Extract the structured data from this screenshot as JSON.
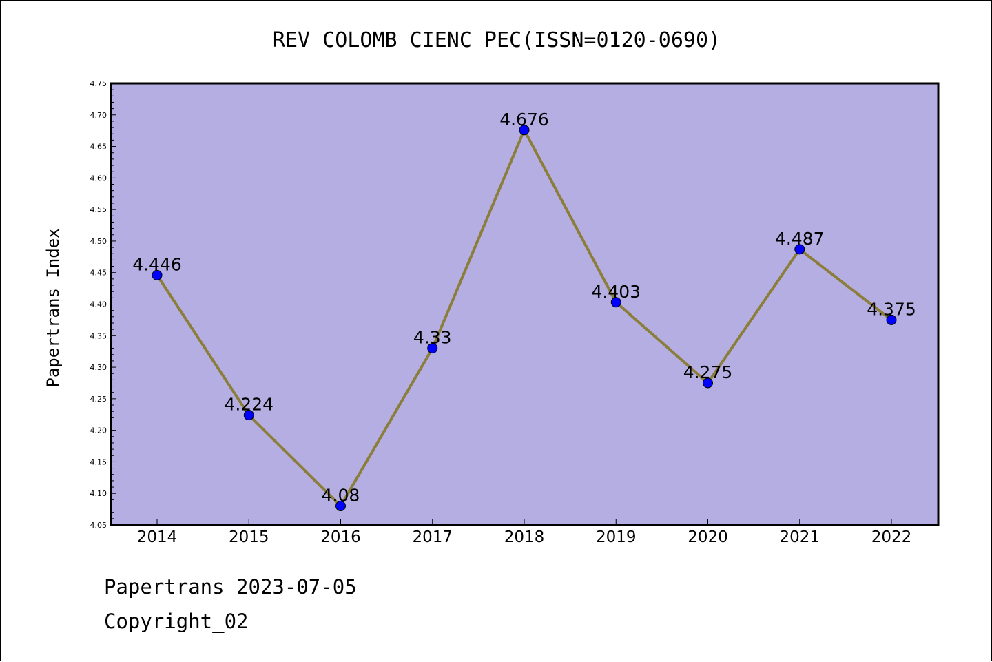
{
  "chart_data": {
    "type": "line",
    "title": "REV COLOMB CIENC PEC(ISSN=0120-0690)",
    "ylabel": "Papertrans Index",
    "xlabel": "",
    "categories": [
      "2014",
      "2015",
      "2016",
      "2017",
      "2018",
      "2019",
      "2020",
      "2021",
      "2022"
    ],
    "series": [
      {
        "values": [
          4.446,
          4.224,
          4.08,
          4.33,
          4.676,
          4.403,
          4.275,
          4.487,
          4.375
        ],
        "labels": [
          "4.446",
          "4.224",
          "4.08",
          "4.33",
          "4.676",
          "4.403",
          "4.275",
          "4.487",
          "4.375"
        ]
      }
    ],
    "ylim": [
      4.05,
      4.75
    ],
    "yticks": [
      "4.05",
      "4.10",
      "4.15",
      "4.20",
      "4.25",
      "4.30",
      "4.35",
      "4.40",
      "4.45",
      "4.50",
      "4.55",
      "4.60",
      "4.65",
      "4.70",
      "4.75"
    ],
    "grid": false,
    "colors": {
      "plot_background": "#b4aee2",
      "line": "#8b7d3a",
      "marker": "#0000ff"
    }
  },
  "footer": {
    "line1": "Papertrans 2023-07-05",
    "line2": "Copyright_02"
  }
}
